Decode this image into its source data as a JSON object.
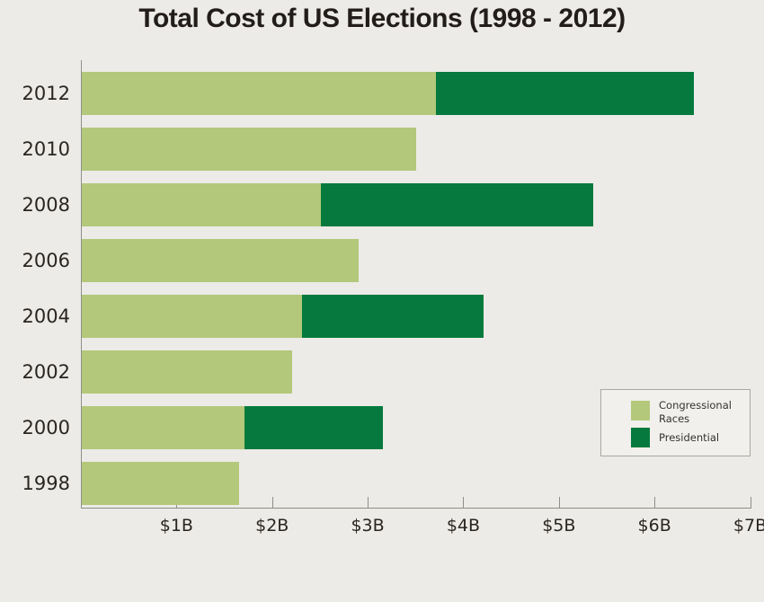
{
  "chart_data": {
    "type": "bar",
    "orientation": "horizontal",
    "stacked": true,
    "title": "Total Cost of US Elections (1998 - 2012)",
    "categories": [
      "2012",
      "2010",
      "2008",
      "2006",
      "2004",
      "2002",
      "2000",
      "1998"
    ],
    "series": [
      {
        "name": "Congressional Races",
        "color": "#b3c87b",
        "values": [
          3.7,
          3.5,
          2.5,
          2.9,
          2.3,
          2.2,
          1.7,
          1.65
        ]
      },
      {
        "name": "Presidential",
        "color": "#067a3e",
        "values": [
          2.7,
          0,
          2.85,
          0,
          1.9,
          0,
          1.45,
          0
        ]
      }
    ],
    "x_ticks": [
      "$1B",
      "$2B",
      "$3B",
      "$4B",
      "$5B",
      "$6B",
      "$7B"
    ],
    "xlim": [
      0,
      7
    ],
    "unit": "billions of US dollars",
    "grid": false,
    "legend_position": "right-center"
  },
  "colors": {
    "background": "#ecebe7",
    "axis": "#8f8f8a",
    "text": "#2a2521",
    "title_text": "#221d1a",
    "legend_background": "#f1f0ec",
    "legend_border": "#a9a9a3"
  }
}
